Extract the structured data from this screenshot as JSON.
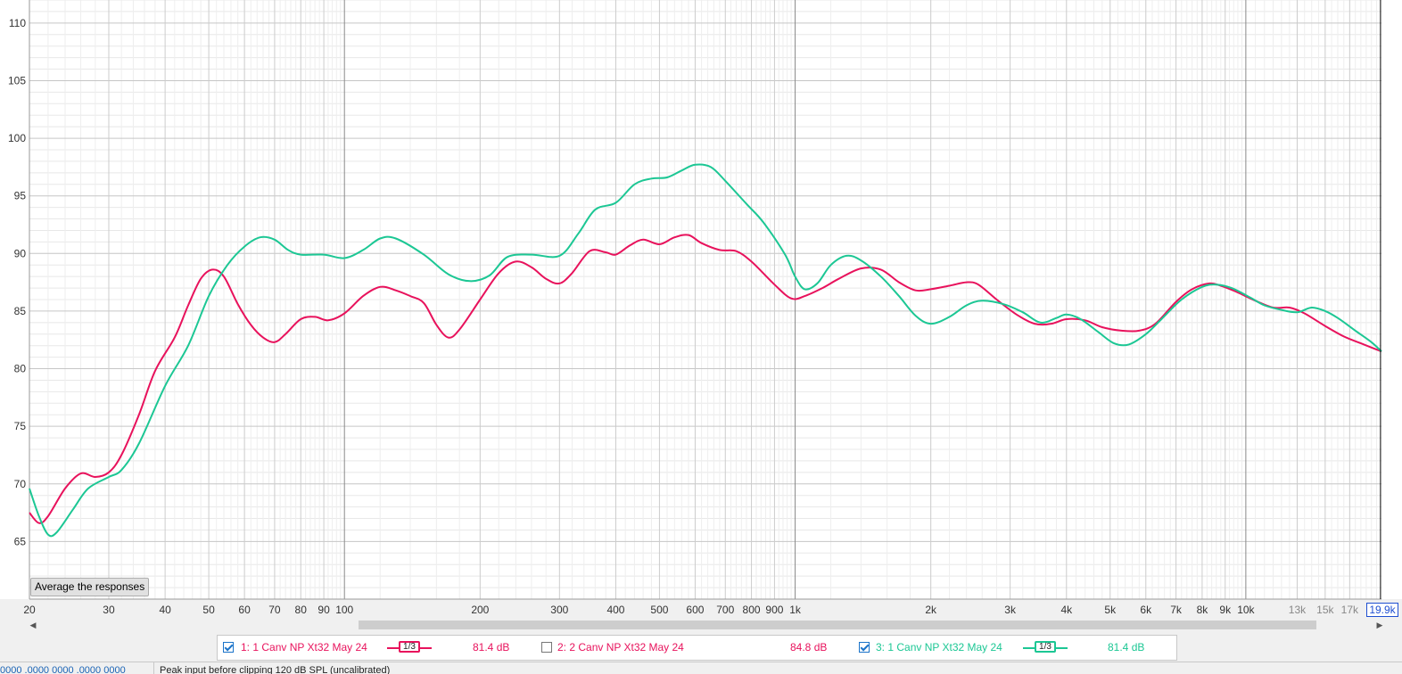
{
  "chart_data": {
    "type": "line",
    "x_scale": "log",
    "xlim": [
      20,
      20000
    ],
    "ylim": [
      60,
      112
    ],
    "grid": true,
    "y_ticks": [
      65,
      70,
      75,
      80,
      85,
      90,
      95,
      100,
      105,
      110
    ],
    "y_tick_labels": [
      "65",
      "70",
      "75",
      "80",
      "85",
      "90",
      "95",
      "100",
      "105",
      "110"
    ],
    "x_ticks": [
      {
        "value": 20,
        "label": "20",
        "major": false
      },
      {
        "value": 30,
        "label": "30",
        "major": false
      },
      {
        "value": 40,
        "label": "40",
        "major": false
      },
      {
        "value": 50,
        "label": "50",
        "major": false
      },
      {
        "value": 60,
        "label": "60",
        "major": false
      },
      {
        "value": 70,
        "label": "70",
        "major": false
      },
      {
        "value": 80,
        "label": "80",
        "major": false
      },
      {
        "value": 90,
        "label": "90",
        "major": false
      },
      {
        "value": 100,
        "label": "100",
        "major": true
      },
      {
        "value": 200,
        "label": "200",
        "major": false
      },
      {
        "value": 300,
        "label": "300",
        "major": false
      },
      {
        "value": 400,
        "label": "400",
        "major": false
      },
      {
        "value": 500,
        "label": "500",
        "major": false
      },
      {
        "value": 600,
        "label": "600",
        "major": false
      },
      {
        "value": 700,
        "label": "700",
        "major": false
      },
      {
        "value": 800,
        "label": "800",
        "major": false
      },
      {
        "value": 900,
        "label": "900",
        "major": false
      },
      {
        "value": 1000,
        "label": "1k",
        "major": true
      },
      {
        "value": 2000,
        "label": "2k",
        "major": false
      },
      {
        "value": 3000,
        "label": "3k",
        "major": false
      },
      {
        "value": 4000,
        "label": "4k",
        "major": false
      },
      {
        "value": 5000,
        "label": "5k",
        "major": false
      },
      {
        "value": 6000,
        "label": "6k",
        "major": false
      },
      {
        "value": 7000,
        "label": "7k",
        "major": false
      },
      {
        "value": 8000,
        "label": "8k",
        "major": false
      },
      {
        "value": 9000,
        "label": "9k",
        "major": false
      },
      {
        "value": 10000,
        "label": "10k",
        "major": true
      },
      {
        "value": 13000,
        "label": "13k",
        "major": false,
        "minor_label": true
      },
      {
        "value": 15000,
        "label": "15k",
        "major": false,
        "minor_label": true
      },
      {
        "value": 17000,
        "label": "17k",
        "major": false,
        "minor_label": true
      }
    ],
    "cursor": {
      "value": 19900,
      "label": "19.9k"
    },
    "series": [
      {
        "name": "1: 1 Canv NP Xt32 May 24",
        "color": "#e8125c",
        "points": [
          [
            20,
            67.5
          ],
          [
            21,
            66.6
          ],
          [
            22,
            67.2
          ],
          [
            24,
            69.6
          ],
          [
            26,
            70.9
          ],
          [
            28,
            70.6
          ],
          [
            30,
            71.0
          ],
          [
            32,
            72.5
          ],
          [
            35,
            76
          ],
          [
            38,
            79.8
          ],
          [
            42,
            82.7
          ],
          [
            45,
            85.5
          ],
          [
            48,
            87.8
          ],
          [
            51,
            88.6
          ],
          [
            54,
            88
          ],
          [
            58,
            85.6
          ],
          [
            62,
            83.8
          ],
          [
            66,
            82.7
          ],
          [
            70,
            82.3
          ],
          [
            74,
            83.0
          ],
          [
            80,
            84.3
          ],
          [
            86,
            84.5
          ],
          [
            92,
            84.2
          ],
          [
            100,
            84.8
          ],
          [
            110,
            86.3
          ],
          [
            120,
            87.1
          ],
          [
            130,
            86.8
          ],
          [
            140,
            86.3
          ],
          [
            150,
            85.7
          ],
          [
            160,
            83.8
          ],
          [
            170,
            82.7
          ],
          [
            180,
            83.4
          ],
          [
            200,
            86.0
          ],
          [
            220,
            88.3
          ],
          [
            240,
            89.3
          ],
          [
            260,
            88.8
          ],
          [
            280,
            87.8
          ],
          [
            300,
            87.4
          ],
          [
            320,
            88.3
          ],
          [
            350,
            90.2
          ],
          [
            380,
            90.1
          ],
          [
            400,
            89.9
          ],
          [
            430,
            90.7
          ],
          [
            460,
            91.2
          ],
          [
            500,
            90.8
          ],
          [
            540,
            91.4
          ],
          [
            580,
            91.6
          ],
          [
            620,
            90.9
          ],
          [
            680,
            90.3
          ],
          [
            740,
            90.2
          ],
          [
            800,
            89.3
          ],
          [
            900,
            87.3
          ],
          [
            980,
            86.1
          ],
          [
            1050,
            86.3
          ],
          [
            1150,
            87.0
          ],
          [
            1250,
            87.8
          ],
          [
            1400,
            88.7
          ],
          [
            1550,
            88.6
          ],
          [
            1700,
            87.5
          ],
          [
            1850,
            86.8
          ],
          [
            2000,
            86.9
          ],
          [
            2200,
            87.2
          ],
          [
            2400,
            87.5
          ],
          [
            2550,
            87.3
          ],
          [
            2800,
            86.0
          ],
          [
            3100,
            84.7
          ],
          [
            3400,
            83.9
          ],
          [
            3700,
            83.9
          ],
          [
            4000,
            84.3
          ],
          [
            4400,
            84.2
          ],
          [
            4800,
            83.6
          ],
          [
            5300,
            83.3
          ],
          [
            5800,
            83.3
          ],
          [
            6300,
            83.9
          ],
          [
            7000,
            85.8
          ],
          [
            7600,
            86.9
          ],
          [
            8300,
            87.4
          ],
          [
            8800,
            87.2
          ],
          [
            9500,
            86.7
          ],
          [
            10500,
            85.9
          ],
          [
            11500,
            85.3
          ],
          [
            12500,
            85.3
          ],
          [
            13500,
            84.8
          ],
          [
            15000,
            83.7
          ],
          [
            16500,
            82.8
          ],
          [
            18000,
            82.2
          ],
          [
            20000,
            81.5
          ]
        ]
      },
      {
        "name": "3: 1 Canv NP Xt32 May 24",
        "color": "#1cc794",
        "points": [
          [
            20,
            69.6
          ],
          [
            21,
            67.2
          ],
          [
            22,
            65.6
          ],
          [
            23,
            65.8
          ],
          [
            25,
            67.8
          ],
          [
            27,
            69.6
          ],
          [
            30,
            70.6
          ],
          [
            32,
            71.2
          ],
          [
            35,
            73.5
          ],
          [
            40,
            78.5
          ],
          [
            45,
            82.0
          ],
          [
            50,
            86.3
          ],
          [
            55,
            89.0
          ],
          [
            60,
            90.6
          ],
          [
            65,
            91.4
          ],
          [
            70,
            91.2
          ],
          [
            75,
            90.3
          ],
          [
            80,
            89.9
          ],
          [
            90,
            89.9
          ],
          [
            100,
            89.6
          ],
          [
            110,
            90.3
          ],
          [
            120,
            91.3
          ],
          [
            130,
            91.3
          ],
          [
            150,
            89.9
          ],
          [
            170,
            88.2
          ],
          [
            190,
            87.6
          ],
          [
            210,
            88.1
          ],
          [
            230,
            89.7
          ],
          [
            260,
            89.9
          ],
          [
            300,
            89.8
          ],
          [
            330,
            91.7
          ],
          [
            360,
            93.8
          ],
          [
            400,
            94.4
          ],
          [
            440,
            96.0
          ],
          [
            480,
            96.5
          ],
          [
            520,
            96.6
          ],
          [
            560,
            97.2
          ],
          [
            600,
            97.7
          ],
          [
            650,
            97.5
          ],
          [
            700,
            96.3
          ],
          [
            780,
            94.3
          ],
          [
            850,
            92.7
          ],
          [
            950,
            89.9
          ],
          [
            1000,
            88.0
          ],
          [
            1050,
            86.9
          ],
          [
            1120,
            87.4
          ],
          [
            1200,
            89.0
          ],
          [
            1300,
            89.8
          ],
          [
            1400,
            89.4
          ],
          [
            1550,
            88.0
          ],
          [
            1700,
            86.3
          ],
          [
            1850,
            84.6
          ],
          [
            2000,
            83.9
          ],
          [
            2200,
            84.5
          ],
          [
            2400,
            85.5
          ],
          [
            2600,
            85.9
          ],
          [
            2900,
            85.6
          ],
          [
            3200,
            84.9
          ],
          [
            3500,
            84.0
          ],
          [
            3800,
            84.4
          ],
          [
            4000,
            84.7
          ],
          [
            4300,
            84.3
          ],
          [
            4700,
            83.2
          ],
          [
            5100,
            82.2
          ],
          [
            5500,
            82.1
          ],
          [
            6000,
            83.0
          ],
          [
            6500,
            84.3
          ],
          [
            7200,
            86.0
          ],
          [
            8000,
            87.1
          ],
          [
            8600,
            87.3
          ],
          [
            9300,
            87.0
          ],
          [
            10200,
            86.2
          ],
          [
            11000,
            85.5
          ],
          [
            12000,
            85.1
          ],
          [
            13000,
            84.9
          ],
          [
            14000,
            85.3
          ],
          [
            15000,
            85.0
          ],
          [
            16000,
            84.4
          ],
          [
            17500,
            83.3
          ],
          [
            19000,
            82.3
          ],
          [
            20000,
            81.5
          ]
        ]
      }
    ]
  },
  "buttons": {
    "average_label": "Average the responses"
  },
  "legend": {
    "items": [
      {
        "label": "1: 1 Canv NP Xt32 May 24",
        "checked": true,
        "smoothing": "1/3",
        "level": "81.4 dB",
        "color": "#e8125c"
      },
      {
        "label": "2: 2 Canv NP Xt32 May 24",
        "checked": false,
        "smoothing": "",
        "level": "84.8 dB",
        "color": "#e8125c"
      },
      {
        "label": "3: 1 Canv NP Xt32 May 24",
        "checked": true,
        "smoothing": "1/3",
        "level": "81.4 dB",
        "color": "#1cc794"
      }
    ]
  },
  "status": {
    "left_text": "0000 .0000 0000 .0000 0000",
    "message": "Peak input before clipping 120 dB SPL (uncalibrated)"
  }
}
